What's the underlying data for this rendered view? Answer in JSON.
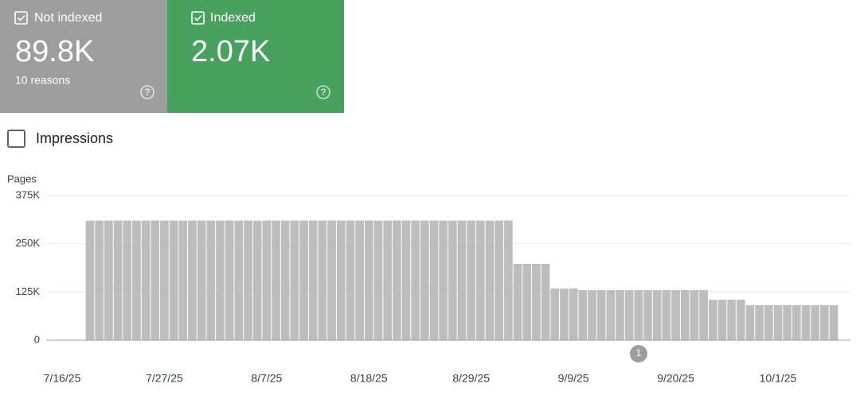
{
  "cards": [
    {
      "label": "Not indexed",
      "value": "89.8K",
      "sub": "10 reasons"
    },
    {
      "label": "Indexed",
      "value": "2.07K"
    }
  ],
  "toggle": {
    "label": "Impressions"
  },
  "annotation": {
    "label": "1"
  },
  "chart_data": {
    "type": "bar",
    "y_label": "Pages",
    "color": "#bdbdbd",
    "grid": true,
    "ylim": [
      0,
      375000
    ],
    "yticks": [
      0,
      {
        "value": 125000,
        "label": "125K"
      },
      {
        "value": 250000,
        "label": "250K"
      },
      {
        "value": 375000,
        "label": "375K"
      }
    ],
    "categories": [
      "7/16/25",
      null,
      null,
      null,
      null,
      null,
      null,
      null,
      null,
      null,
      null,
      "7/27/25",
      null,
      null,
      null,
      null,
      null,
      null,
      null,
      null,
      null,
      null,
      "8/7/25",
      null,
      null,
      null,
      null,
      null,
      null,
      null,
      null,
      null,
      null,
      "8/18/25",
      null,
      null,
      null,
      null,
      null,
      null,
      null,
      null,
      null,
      null,
      "8/29/25",
      null,
      null,
      null,
      null,
      null,
      null,
      null,
      null,
      null,
      null,
      "9/9/25",
      null,
      null,
      null,
      null,
      null,
      null,
      null,
      null,
      null,
      null,
      "9/20/25",
      null,
      null,
      null,
      null,
      null,
      null,
      null,
      null,
      null,
      null,
      "10/1/25",
      null,
      null,
      null,
      null,
      null,
      null
    ],
    "values": [
      null,
      null,
      null,
      310000,
      310000,
      310000,
      310000,
      310000,
      310000,
      310000,
      310000,
      310000,
      310000,
      310000,
      310000,
      310000,
      310000,
      310000,
      310000,
      310000,
      310000,
      310000,
      310000,
      310000,
      310000,
      310000,
      310000,
      310000,
      310000,
      310000,
      310000,
      310000,
      310000,
      310000,
      310000,
      310000,
      310000,
      310000,
      310000,
      310000,
      310000,
      310000,
      310000,
      310000,
      310000,
      310000,
      310000,
      310000,
      310000,
      198000,
      198000,
      198000,
      198000,
      134000,
      134000,
      134000,
      130000,
      130000,
      130000,
      130000,
      130000,
      130000,
      130000,
      130000,
      130000,
      130000,
      130000,
      130000,
      130000,
      130000,
      105000,
      105000,
      105000,
      105000,
      91000,
      91000,
      91000,
      91000,
      91000,
      91000,
      91000,
      91000,
      91000,
      91000
    ]
  }
}
